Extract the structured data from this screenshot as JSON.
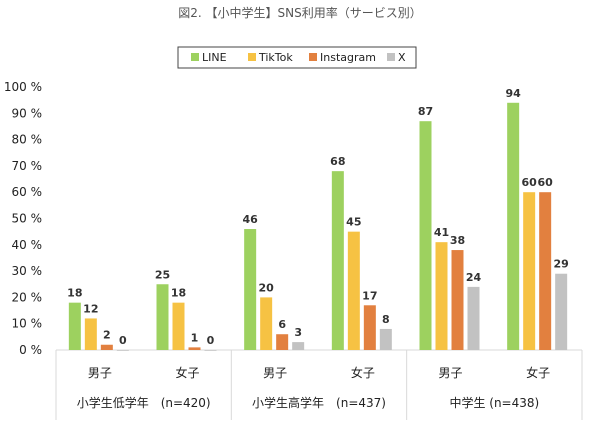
{
  "chart_data": {
    "type": "bar",
    "title": "図2. 【小中学生】SNS利用率（サービス別）",
    "ylabel": "",
    "ylim": [
      0,
      100
    ],
    "yticks": [
      "0 %",
      "10 %",
      "20 %",
      "30 %",
      "40 %",
      "50 %",
      "60 %",
      "70 %",
      "80 %",
      "90 %",
      "100 %"
    ],
    "legend_position": "top",
    "grid": false,
    "categories": [
      "男子",
      "女子",
      "男子",
      "女子",
      "男子",
      "女子"
    ],
    "groups": [
      "小学生低学年　(n=420)",
      "小学生高学年　(n=437)",
      "中学生 (n=438)"
    ],
    "series": [
      {
        "name": "LINE",
        "color": "#9dd15f",
        "values": [
          18,
          25,
          46,
          68,
          87,
          94
        ]
      },
      {
        "name": "TikTok",
        "color": "#f6c243",
        "values": [
          12,
          18,
          20,
          45,
          41,
          60
        ]
      },
      {
        "name": "Instagram",
        "color": "#e2803f",
        "values": [
          2,
          1,
          6,
          17,
          38,
          60
        ]
      },
      {
        "name": "X",
        "color": "#c2c2c2",
        "values": [
          0,
          0,
          3,
          8,
          24,
          29
        ]
      }
    ]
  }
}
